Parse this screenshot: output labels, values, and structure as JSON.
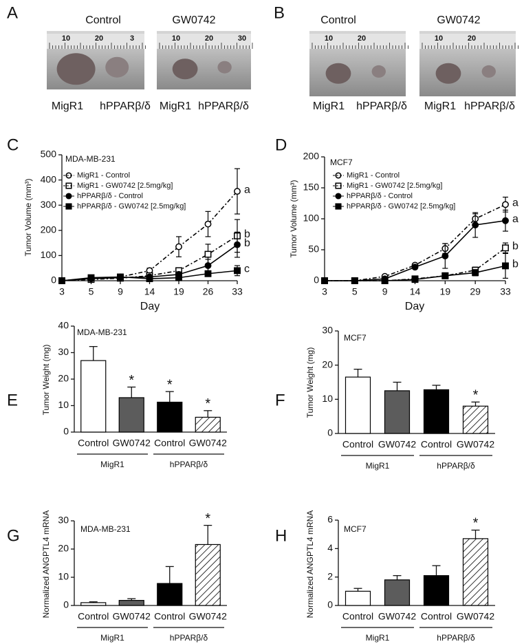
{
  "photos": [
    {
      "panel": "A",
      "images": [
        {
          "title": "Control",
          "ruler": [
            "10",
            "20",
            "3"
          ],
          "labels": [
            "MigR1",
            "hPPARβ/δ"
          ]
        },
        {
          "title": "GW0742",
          "ruler": [
            "10",
            "20",
            "30"
          ],
          "labels": [
            "MigR1",
            "hPPARβ/δ"
          ]
        }
      ]
    },
    {
      "panel": "B",
      "images": [
        {
          "title": "Control",
          "ruler": [
            "10",
            "20"
          ],
          "labels": [
            "MigR1",
            "hPPARβ/δ"
          ]
        },
        {
          "title": "GW0742",
          "ruler": [
            "10",
            "20"
          ],
          "labels": [
            "MigR1",
            "hPPARβ/δ"
          ]
        }
      ]
    }
  ],
  "chart_data": [
    {
      "type": "line",
      "panel": "C",
      "subtitle": "MDA-MB-231",
      "ylabel": "Tumor Volume (mm³)",
      "xlabel": "Day",
      "categories": [
        "3",
        "5",
        "9",
        "14",
        "19",
        "26",
        "33"
      ],
      "ylim": [
        0,
        500
      ],
      "yticks": [
        0,
        100,
        200,
        300,
        400,
        500
      ],
      "series": [
        {
          "name": "MigR1 - Control",
          "color": "#000000",
          "marker": "circle",
          "filled": false,
          "dashed": true,
          "values": [
            0,
            10,
            15,
            40,
            135,
            225,
            355
          ],
          "errors": [
            0,
            3,
            5,
            10,
            40,
            50,
            90
          ],
          "end_label": "a"
        },
        {
          "name": "MigR1 - GW0742 [2.5mg/kg]",
          "color": "#000000",
          "marker": "square",
          "filled": false,
          "dashed": true,
          "values": [
            0,
            5,
            10,
            20,
            40,
            105,
            178
          ],
          "errors": [
            0,
            2,
            3,
            5,
            10,
            40,
            65
          ],
          "end_label": "b"
        },
        {
          "name": "hPPARβ/δ - Control",
          "color": "#000000",
          "marker": "circle",
          "filled": true,
          "dashed": false,
          "values": [
            0,
            8,
            12,
            15,
            25,
            60,
            143
          ],
          "errors": [
            0,
            3,
            3,
            5,
            10,
            25,
            50
          ],
          "end_label": "b"
        },
        {
          "name": "hPPARβ/δ - GW0742 [2.5mg/kg]",
          "color": "#000000",
          "marker": "square",
          "filled": true,
          "dashed": false,
          "values": [
            0,
            12,
            15,
            8,
            12,
            28,
            40
          ],
          "errors": [
            0,
            3,
            3,
            3,
            5,
            10,
            20
          ],
          "end_label": "c"
        }
      ]
    },
    {
      "type": "line",
      "panel": "D",
      "subtitle": "MCF7",
      "ylabel": "Tumor Volume (mm³)",
      "xlabel": "Day",
      "categories": [
        "3",
        "5",
        "9",
        "14",
        "19",
        "29",
        "33"
      ],
      "ylim": [
        0,
        200
      ],
      "yticks": [
        0,
        50,
        100,
        150,
        200
      ],
      "series": [
        {
          "name": "MigR1 - Control",
          "color": "#000000",
          "marker": "circle",
          "filled": false,
          "dashed": true,
          "values": [
            0,
            0,
            7,
            25,
            52,
            100,
            123
          ],
          "errors": [
            0,
            0,
            2,
            3,
            8,
            8,
            12
          ],
          "end_label": "a"
        },
        {
          "name": "MigR1 - GW0742 [2.5mg/kg]",
          "color": "#000000",
          "marker": "square",
          "filled": false,
          "dashed": true,
          "values": [
            0,
            0,
            0,
            3,
            8,
            17,
            53
          ],
          "errors": [
            0,
            0,
            0,
            2,
            3,
            5,
            8
          ],
          "end_label": "b"
        },
        {
          "name": "hPPARβ/δ - Control",
          "color": "#000000",
          "marker": "circle",
          "filled": true,
          "dashed": false,
          "values": [
            0,
            0,
            3,
            22,
            40,
            90,
            97
          ],
          "errors": [
            0,
            0,
            1,
            3,
            20,
            20,
            17
          ],
          "end_label": "a"
        },
        {
          "name": "hPPARβ/δ - GW0742 [2.5mg/kg]",
          "color": "#000000",
          "marker": "square",
          "filled": true,
          "dashed": false,
          "values": [
            0,
            0,
            0,
            2,
            8,
            13,
            24
          ],
          "errors": [
            0,
            0,
            0,
            1,
            3,
            5,
            20
          ],
          "end_label": "b"
        }
      ]
    },
    {
      "type": "bar",
      "panel": "E",
      "subtitle": "MDA-MB-231",
      "ylabel": "Tumor Weight (mg)",
      "categories": [
        "Control",
        "GW0742",
        "Control",
        "GW0742"
      ],
      "groups": [
        "MigR1",
        "hPPARβ/δ"
      ],
      "values": [
        27,
        13,
        11.3,
        5.6
      ],
      "errors": [
        5.3,
        4,
        4,
        2.5
      ],
      "stars": [
        null,
        "*",
        "*",
        "*"
      ],
      "colors": [
        "#ffffff",
        "#5c5c5c",
        "#000000",
        "#ffffff"
      ],
      "hatch": [
        false,
        false,
        false,
        true
      ],
      "ylim": [
        0,
        40
      ],
      "yticks": [
        0,
        10,
        20,
        30,
        40
      ]
    },
    {
      "type": "bar",
      "panel": "F",
      "subtitle": "MCF7",
      "ylabel": "Tumor Weight (mg)",
      "categories": [
        "Control",
        "GW0742",
        "Control",
        "GW0742"
      ],
      "groups": [
        "MigR1",
        "hPPARβ/δ"
      ],
      "values": [
        16.5,
        12.5,
        12.8,
        8
      ],
      "errors": [
        2.3,
        2.5,
        1.3,
        1.2
      ],
      "stars": [
        null,
        null,
        null,
        "*"
      ],
      "colors": [
        "#ffffff",
        "#5c5c5c",
        "#000000",
        "#ffffff"
      ],
      "hatch": [
        false,
        false,
        false,
        true
      ],
      "ylim": [
        0,
        30
      ],
      "yticks": [
        0,
        10,
        20,
        30
      ]
    },
    {
      "type": "bar",
      "panel": "G",
      "subtitle": "MDA-MB-231",
      "ylabel": "Normalized ANGPTL4 mRNA",
      "categories": [
        "Control",
        "GW0742",
        "Control",
        "GW0742"
      ],
      "groups": [
        "MigR1",
        "hPPARβ/δ"
      ],
      "values": [
        1,
        1.8,
        7.8,
        21.6
      ],
      "errors": [
        0.3,
        0.6,
        6,
        6.8
      ],
      "stars": [
        null,
        null,
        null,
        "*"
      ],
      "colors": [
        "#ffffff",
        "#5c5c5c",
        "#000000",
        "#ffffff"
      ],
      "hatch": [
        false,
        false,
        false,
        true
      ],
      "ylim": [
        0,
        30
      ],
      "yticks": [
        0,
        10,
        20,
        30
      ]
    },
    {
      "type": "bar",
      "panel": "H",
      "subtitle": "MCF7",
      "ylabel": "Normalized ANGPTL4 mRNA",
      "categories": [
        "Control",
        "GW0742",
        "Control",
        "GW0742"
      ],
      "groups": [
        "MigR1",
        "hPPARβ/δ"
      ],
      "values": [
        1,
        1.8,
        2.1,
        4.7
      ],
      "errors": [
        0.2,
        0.3,
        0.7,
        0.6
      ],
      "stars": [
        null,
        null,
        null,
        "*"
      ],
      "colors": [
        "#ffffff",
        "#5c5c5c",
        "#000000",
        "#ffffff"
      ],
      "hatch": [
        false,
        false,
        false,
        true
      ],
      "ylim": [
        0,
        6
      ],
      "yticks": [
        0,
        2,
        4,
        6
      ]
    }
  ]
}
